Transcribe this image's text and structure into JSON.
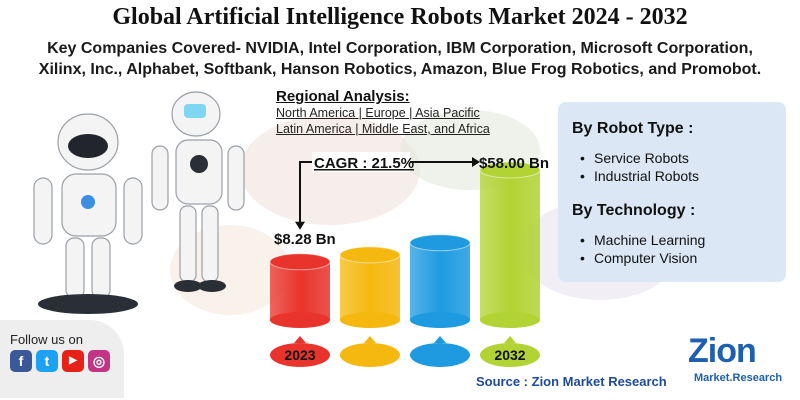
{
  "header": {
    "title": "Global Artificial Intelligence Robots Market 2024 - 2032",
    "subtitle_line1": "Key Companies Covered- NVIDIA, Intel Corporation, IBM Corporation, Microsoft Corporation,",
    "subtitle_line2": "Xilinx, Inc., Alphabet, Softbank, Hanson Robotics, Amazon, Blue Frog Robotics, and Promobot."
  },
  "regional": {
    "heading": "Regional Analysis:",
    "line1": "North America | Europe | Asia Pacific",
    "line2": "Latin America | Middle East, and Africa"
  },
  "segments": {
    "robot_type_title": "By Robot Type :",
    "robot_types": [
      "Service Robots",
      "Industrial Robots"
    ],
    "technology_title": "By Technology :",
    "technologies": [
      "Machine Learning",
      "Computer Vision"
    ]
  },
  "chart_data": {
    "type": "bar",
    "categories": [
      "2023",
      "",
      "",
      "2032"
    ],
    "values": [
      8.28,
      14.2,
      22.0,
      58.0
    ],
    "value_labels": [
      "$8.28 Bn",
      "",
      "",
      "$58.00 Bn"
    ],
    "cagr_label": "CAGR : 21.5%",
    "colors": [
      "#e8342c",
      "#f5b80f",
      "#1e9be0",
      "#b2d334"
    ]
  },
  "social": {
    "label": "Follow us on",
    "icons": [
      "facebook-icon",
      "twitter-icon",
      "youtube-icon",
      "instagram-icon"
    ],
    "glyphs": [
      "f",
      "t",
      "▶",
      "◎"
    ]
  },
  "footer": {
    "source": "Source : Zion Market Research",
    "logo_main": "Zion",
    "logo_sub": "Market.Research"
  }
}
